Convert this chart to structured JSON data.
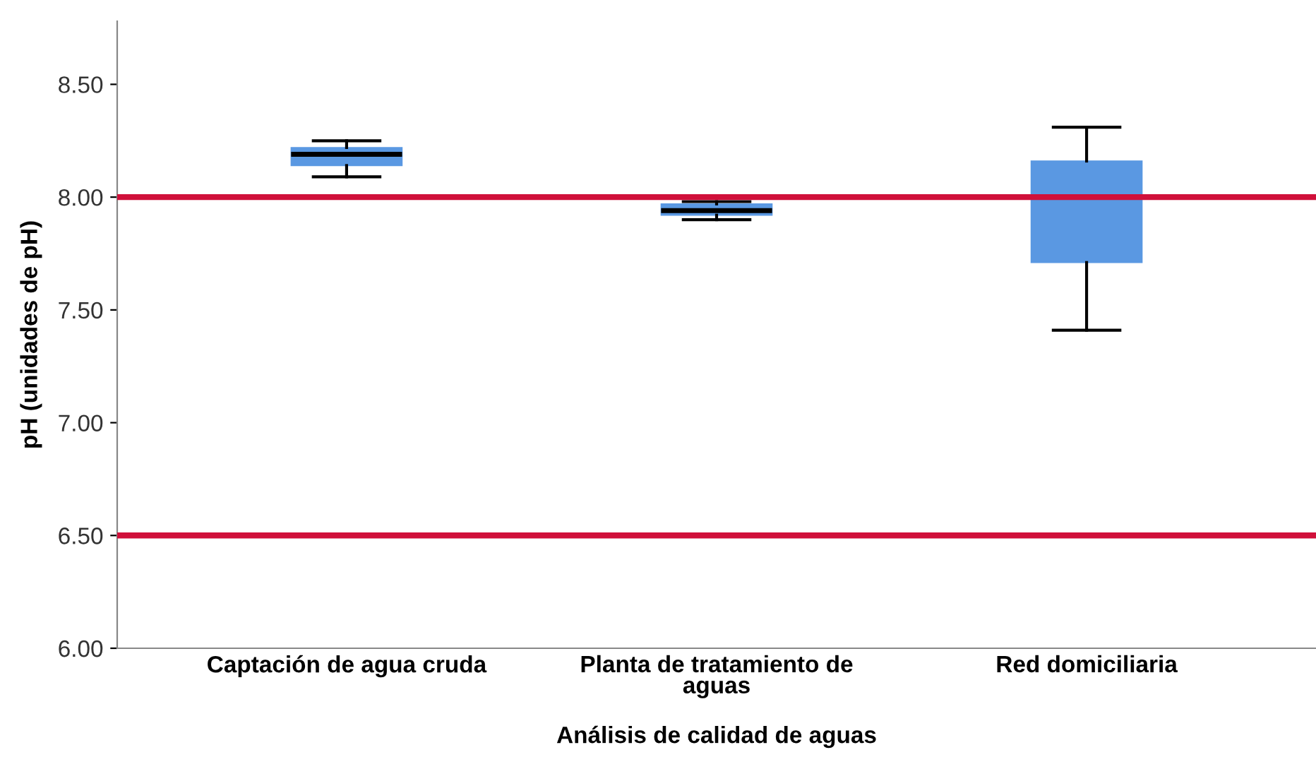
{
  "chart_data": {
    "type": "box",
    "xlabel": "Análisis de calidad de aguas",
    "ylabel": "pH (unidades de pH)",
    "categories": [
      "Captación de agua cruda",
      "Planta de tratamiento de\naguas",
      "Red domiciliaria"
    ],
    "boxes": [
      {
        "low": 8.09,
        "q1": 8.14,
        "median": 8.19,
        "q3": 8.22,
        "high": 8.25
      },
      {
        "low": 7.9,
        "q1": 7.92,
        "median": 7.94,
        "q3": 7.97,
        "high": 7.98
      },
      {
        "low": 7.41,
        "q1": 7.71,
        "median": 8.0,
        "q3": 8.16,
        "high": 8.31
      }
    ],
    "color": "#5a98e2",
    "ylim": [
      6.0,
      8.78
    ],
    "yticks": [
      {
        "value": 6.0,
        "label": "6.00"
      },
      {
        "value": 6.5,
        "label": "6.50"
      },
      {
        "value": 7.0,
        "label": "7.00"
      },
      {
        "value": 7.5,
        "label": "7.50"
      },
      {
        "value": 8.0,
        "label": "8.00"
      },
      {
        "value": 8.5,
        "label": "8.50"
      }
    ],
    "ref_lines": [
      {
        "axis": "y",
        "value": 8.0,
        "label": null,
        "color": "#d0103a"
      },
      {
        "axis": "y",
        "value": 6.5,
        "label": null,
        "color": "#d0103a"
      }
    ],
    "grid": false
  }
}
